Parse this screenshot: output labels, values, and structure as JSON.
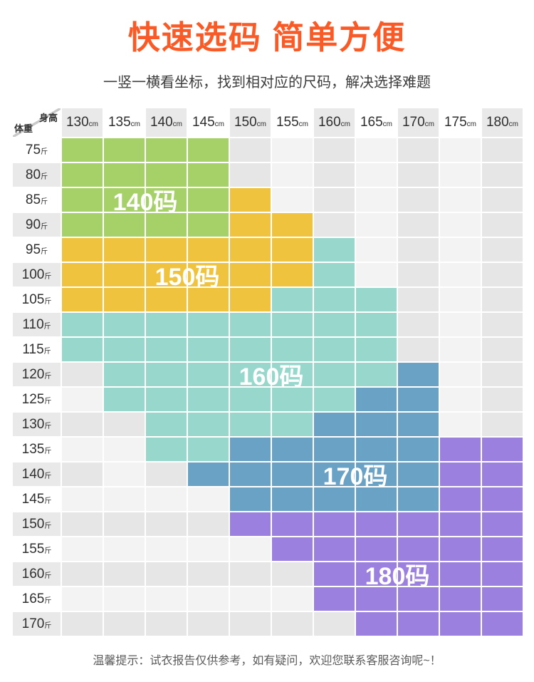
{
  "title": "快速选码 简单方便",
  "subtitle": "一竖一横看坐标，找到相对应的尺码，解决选择难题",
  "footer_note": "温馨提示：试衣报告仅供参考，如有疑问，欢迎您联系客服咨询呢~！",
  "colors": {
    "title": "#fa5a26",
    "size_140": "#a6d168",
    "size_150": "#f0c33e",
    "size_160": "#98d8cc",
    "size_170": "#6aa2c5",
    "size_180": "#9c80e0",
    "cell_light": "#f3f3f3",
    "cell_gray": "#e6e6e6",
    "header_gray": "#e9e9e9",
    "header_white": "#ffffff"
  },
  "chart_data": {
    "type": "heatmap",
    "title": "快速选码 简单方便",
    "x_axis": {
      "label": "身高",
      "unit": "cm",
      "values": [
        "130",
        "135",
        "140",
        "145",
        "150",
        "155",
        "160",
        "165",
        "170",
        "175",
        "180"
      ]
    },
    "y_axis": {
      "label": "体重",
      "unit": "斤",
      "values": [
        "75",
        "80",
        "85",
        "90",
        "95",
        "100",
        "105",
        "110",
        "115",
        "120",
        "125",
        "130",
        "135",
        "140",
        "145",
        "150",
        "155",
        "160",
        "165",
        "170"
      ]
    },
    "sizes": [
      {
        "code": 1,
        "label": "140码",
        "color": "#a6d168"
      },
      {
        "code": 2,
        "label": "150码",
        "color": "#f0c33e"
      },
      {
        "code": 3,
        "label": "160码",
        "color": "#98d8cc"
      },
      {
        "code": 4,
        "label": "170码",
        "color": "#6aa2c5"
      },
      {
        "code": 5,
        "label": "180码",
        "color": "#9c80e0"
      }
    ],
    "empty_codes": {
      "L": "light-gray-cell",
      "G": "gray-cell"
    },
    "matrix": [
      [
        1,
        1,
        1,
        1,
        "G",
        "L",
        "G",
        "L",
        "G",
        "L",
        "G"
      ],
      [
        1,
        1,
        1,
        1,
        "G",
        "L",
        "G",
        "L",
        "G",
        "L",
        "G"
      ],
      [
        1,
        1,
        1,
        1,
        2,
        "L",
        "G",
        "L",
        "G",
        "L",
        "G"
      ],
      [
        1,
        1,
        1,
        1,
        2,
        2,
        "G",
        "L",
        "G",
        "L",
        "G"
      ],
      [
        2,
        2,
        2,
        2,
        2,
        2,
        3,
        "L",
        "G",
        "L",
        "G"
      ],
      [
        2,
        2,
        2,
        2,
        2,
        2,
        3,
        "L",
        "G",
        "L",
        "G"
      ],
      [
        2,
        2,
        2,
        2,
        2,
        3,
        3,
        3,
        "G",
        "L",
        "G"
      ],
      [
        3,
        3,
        3,
        3,
        3,
        3,
        3,
        3,
        "G",
        "L",
        "G"
      ],
      [
        3,
        3,
        3,
        3,
        3,
        3,
        3,
        3,
        "G",
        "L",
        "G"
      ],
      [
        "G",
        3,
        3,
        3,
        3,
        3,
        3,
        3,
        4,
        "L",
        "G"
      ],
      [
        "L",
        3,
        3,
        3,
        3,
        3,
        3,
        4,
        4,
        "L",
        "G"
      ],
      [
        "G",
        "G",
        3,
        3,
        3,
        3,
        4,
        4,
        4,
        "L",
        "G"
      ],
      [
        "L",
        "L",
        3,
        3,
        4,
        4,
        4,
        4,
        4,
        5,
        5
      ],
      [
        "G",
        "L",
        "G",
        4,
        4,
        4,
        4,
        4,
        4,
        5,
        5
      ],
      [
        "L",
        "L",
        "L",
        "L",
        4,
        4,
        4,
        4,
        4,
        5,
        5
      ],
      [
        "G",
        "G",
        "G",
        "G",
        5,
        5,
        5,
        5,
        5,
        5,
        5
      ],
      [
        "L",
        "L",
        "L",
        "L",
        "L",
        5,
        5,
        5,
        5,
        5,
        5
      ],
      [
        "G",
        "G",
        "G",
        "G",
        "G",
        "G",
        5,
        5,
        5,
        5,
        5
      ],
      [
        "L",
        "L",
        "L",
        "L",
        "L",
        "L",
        5,
        5,
        5,
        5,
        5
      ],
      [
        "G",
        "G",
        "G",
        "G",
        "G",
        "G",
        "G",
        5,
        5,
        5,
        5
      ]
    ],
    "size_labels": [
      {
        "text": "140码",
        "row": 2,
        "col": 1,
        "span": 2
      },
      {
        "text": "150码",
        "row": 5,
        "col": 2,
        "span": 2
      },
      {
        "text": "160码",
        "row": 9,
        "col": 4,
        "span": 2
      },
      {
        "text": "170码",
        "row": 13,
        "col": 6,
        "span": 2
      },
      {
        "text": "180码",
        "row": 17,
        "col": 7,
        "span": 2
      }
    ]
  }
}
